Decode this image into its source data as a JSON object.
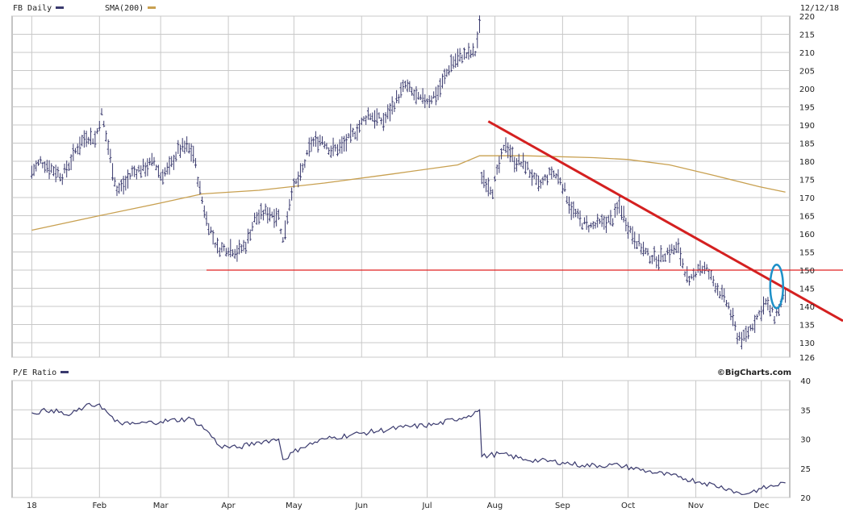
{
  "header": {
    "symbol_label": "FB Daily",
    "sma_label": "SMA(200)",
    "date": "12/12/18",
    "pe_label": "P/E Ratio",
    "watermark": "©BigCharts.com"
  },
  "colors": {
    "price_bars": "#3a3a6e",
    "sma": "#c8a050",
    "trendline": "#d42020",
    "support": "#e02020",
    "ellipse": "#1e90c8",
    "grid": "#c8c8c8",
    "frame": "#888888"
  },
  "chart_data": [
    {
      "type": "line",
      "title": "FB Daily",
      "note": "OHLC price bars (approximate daily trend) with 200-day SMA",
      "x_labels": [
        "18",
        "Feb",
        "Mar",
        "Apr",
        "May",
        "Jun",
        "Jul",
        "Aug",
        "Sep",
        "Oct",
        "Nov",
        "Dec"
      ],
      "y_ticks": [
        126,
        130,
        135,
        140,
        145,
        150,
        155,
        160,
        165,
        170,
        175,
        180,
        185,
        190,
        195,
        200,
        205,
        210,
        215,
        220
      ],
      "ylim": [
        126,
        220
      ],
      "series": [
        {
          "name": "FB Daily",
          "style": "price",
          "points": [
            [
              "2018-01-01",
              177
            ],
            [
              "2018-01-05",
              180
            ],
            [
              "2018-01-10",
              178
            ],
            [
              "2018-01-15",
              176
            ],
            [
              "2018-01-18",
              179
            ],
            [
              "2018-01-22",
              184
            ],
            [
              "2018-01-26",
              187
            ],
            [
              "2018-01-30",
              186
            ],
            [
              "2018-02-02",
              193
            ],
            [
              "2018-02-06",
              181
            ],
            [
              "2018-02-09",
              172
            ],
            [
              "2018-02-13",
              174
            ],
            [
              "2018-02-16",
              177
            ],
            [
              "2018-02-21",
              178
            ],
            [
              "2018-02-26",
              180
            ],
            [
              "2018-03-01",
              176
            ],
            [
              "2018-03-05",
              178
            ],
            [
              "2018-03-09",
              183
            ],
            [
              "2018-03-13",
              184
            ],
            [
              "2018-03-16",
              182
            ],
            [
              "2018-03-19",
              172
            ],
            [
              "2018-03-22",
              164
            ],
            [
              "2018-03-27",
              156
            ],
            [
              "2018-04-02",
              156
            ],
            [
              "2018-04-05",
              155
            ],
            [
              "2018-04-09",
              157
            ],
            [
              "2018-04-13",
              164
            ],
            [
              "2018-04-18",
              166
            ],
            [
              "2018-04-24",
              165
            ],
            [
              "2018-04-26",
              158
            ],
            [
              "2018-04-30",
              172
            ],
            [
              "2018-05-04",
              176
            ],
            [
              "2018-05-09",
              185
            ],
            [
              "2018-05-14",
              186
            ],
            [
              "2018-05-18",
              183
            ],
            [
              "2018-05-23",
              184
            ],
            [
              "2018-05-29",
              188
            ],
            [
              "2018-06-04",
              193
            ],
            [
              "2018-06-11",
              191
            ],
            [
              "2018-06-15",
              195
            ],
            [
              "2018-06-21",
              201
            ],
            [
              "2018-06-27",
              197
            ],
            [
              "2018-07-02",
              197
            ],
            [
              "2018-07-06",
              199
            ],
            [
              "2018-07-12",
              207
            ],
            [
              "2018-07-17",
              209
            ],
            [
              "2018-07-23",
              210
            ],
            [
              "2018-07-25",
              217
            ],
            [
              "2018-07-26",
              176
            ],
            [
              "2018-07-31",
              172
            ],
            [
              "2018-08-03",
              179
            ],
            [
              "2018-08-06",
              185
            ],
            [
              "2018-08-10",
              180
            ],
            [
              "2018-08-15",
              179
            ],
            [
              "2018-08-21",
              173
            ],
            [
              "2018-08-27",
              177
            ],
            [
              "2018-08-31",
              175
            ],
            [
              "2018-09-05",
              167
            ],
            [
              "2018-09-10",
              163
            ],
            [
              "2018-09-14",
              162
            ],
            [
              "2018-09-19",
              163
            ],
            [
              "2018-09-24",
              164
            ],
            [
              "2018-09-27",
              168
            ],
            [
              "2018-10-01",
              162
            ],
            [
              "2018-10-05",
              158
            ],
            [
              "2018-10-10",
              154
            ],
            [
              "2018-10-15",
              153
            ],
            [
              "2018-10-19",
              155
            ],
            [
              "2018-10-24",
              156
            ],
            [
              "2018-10-29",
              146
            ],
            [
              "2018-11-02",
              151
            ],
            [
              "2018-11-06",
              150
            ],
            [
              "2018-11-12",
              144
            ],
            [
              "2018-11-16",
              140
            ],
            [
              "2018-11-20",
              132
            ],
            [
              "2018-11-23",
              131
            ],
            [
              "2018-11-27",
              135
            ],
            [
              "2018-12-03",
              141
            ],
            [
              "2018-12-07",
              137
            ],
            [
              "2018-12-12",
              143
            ]
          ]
        },
        {
          "name": "SMA(200)",
          "points": [
            [
              "2018-01-01",
              161
            ],
            [
              "2018-02-01",
              165
            ],
            [
              "2018-03-01",
              168.5
            ],
            [
              "2018-03-20",
              171
            ],
            [
              "2018-04-15",
              172
            ],
            [
              "2018-05-15",
              174
            ],
            [
              "2018-06-15",
              176.5
            ],
            [
              "2018-07-15",
              179
            ],
            [
              "2018-07-25",
              181.5
            ],
            [
              "2018-08-15",
              181.5
            ],
            [
              "2018-09-15",
              181
            ],
            [
              "2018-10-01",
              180.5
            ],
            [
              "2018-10-20",
              179
            ],
            [
              "2018-11-10",
              176
            ],
            [
              "2018-11-30",
              173
            ],
            [
              "2018-12-12",
              171.5
            ]
          ]
        }
      ],
      "overlays": {
        "support_line": 150,
        "trendline": [
          [
            "2018-07-29",
            191
          ],
          [
            "2018-12-28",
            136
          ]
        ],
        "ellipse_center": [
          "2018-12-08",
          145.5
        ]
      }
    },
    {
      "type": "line",
      "title": "P/E Ratio",
      "x_labels": [
        "18",
        "Feb",
        "Mar",
        "Apr",
        "May",
        "Jun",
        "Jul",
        "Aug",
        "Sep",
        "Oct",
        "Nov",
        "Dec"
      ],
      "y_ticks": [
        20,
        25,
        30,
        35,
        40
      ],
      "ylim": [
        20,
        40
      ],
      "series": [
        {
          "name": "P/E Ratio",
          "points": [
            [
              "2018-01-01",
              34.5
            ],
            [
              "2018-01-10",
              35
            ],
            [
              "2018-01-18",
              34
            ],
            [
              "2018-01-25",
              35.5
            ],
            [
              "2018-02-01",
              36
            ],
            [
              "2018-02-08",
              33
            ],
            [
              "2018-02-15",
              32.5
            ],
            [
              "2018-03-01",
              33
            ],
            [
              "2018-03-15",
              33.5
            ],
            [
              "2018-03-22",
              31.5
            ],
            [
              "2018-03-28",
              28.8
            ],
            [
              "2018-04-05",
              28.5
            ],
            [
              "2018-04-15",
              29.5
            ],
            [
              "2018-04-24",
              30
            ],
            [
              "2018-04-26",
              26.5
            ],
            [
              "2018-05-04",
              28.5
            ],
            [
              "2018-05-15",
              30
            ],
            [
              "2018-06-01",
              31
            ],
            [
              "2018-06-20",
              32
            ],
            [
              "2018-07-05",
              32.5
            ],
            [
              "2018-07-20",
              34
            ],
            [
              "2018-07-25",
              35
            ],
            [
              "2018-07-26",
              27
            ],
            [
              "2018-08-03",
              27.5
            ],
            [
              "2018-08-15",
              26.5
            ],
            [
              "2018-09-01",
              26
            ],
            [
              "2018-09-10",
              25.5
            ],
            [
              "2018-09-27",
              25.5
            ],
            [
              "2018-10-10",
              24.5
            ],
            [
              "2018-10-24",
              23.5
            ],
            [
              "2018-11-05",
              22.5
            ],
            [
              "2018-11-16",
              21.5
            ],
            [
              "2018-11-22",
              20.5
            ],
            [
              "2018-12-01",
              21.5
            ],
            [
              "2018-12-12",
              22.5
            ]
          ]
        }
      ]
    }
  ]
}
